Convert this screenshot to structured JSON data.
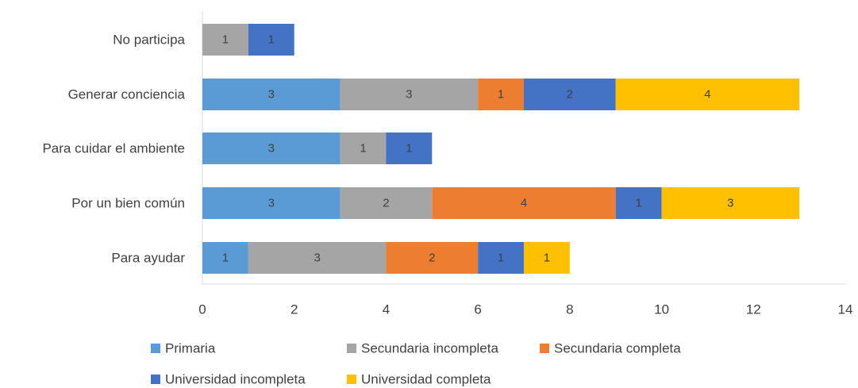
{
  "chart_data": {
    "type": "bar",
    "orientation": "horizontal",
    "stacked": true,
    "categories": [
      "No participa",
      "Generar conciencia",
      "Para cuidar el ambiente",
      "Por un bien común",
      "Para ayudar"
    ],
    "series": [
      {
        "name": "Primaria",
        "color": "#5B9BD5",
        "values": [
          0,
          3,
          3,
          3,
          1
        ]
      },
      {
        "name": "Secundaria incompleta",
        "color": "#A5A5A5",
        "values": [
          1,
          3,
          1,
          2,
          3
        ]
      },
      {
        "name": "Secundaria completa",
        "color": "#ED7D31",
        "values": [
          0,
          1,
          0,
          4,
          2
        ]
      },
      {
        "name": "Universidad incompleta",
        "color": "#4472C4",
        "values": [
          1,
          2,
          1,
          1,
          1
        ]
      },
      {
        "name": "Universidad completa",
        "color": "#FFC000",
        "values": [
          0,
          4,
          0,
          3,
          1
        ]
      }
    ],
    "xlim": [
      0,
      14
    ],
    "xticks": [
      0,
      2,
      4,
      6,
      8,
      10,
      12,
      14
    ],
    "grid": false,
    "data_labels": true,
    "legend_position": "bottom",
    "title": "",
    "xlabel": "",
    "ylabel": ""
  }
}
